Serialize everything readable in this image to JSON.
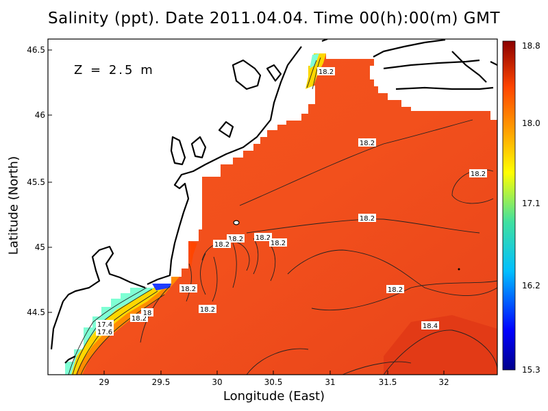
{
  "title": "Salinity (ppt). Date 2011.04.04. Time 00(h):00(m) GMT",
  "depth_label": "Z = 2.5 m",
  "xlabel": "Longitude (East)",
  "ylabel": "Latitude (North)",
  "x_ticks": [
    "29",
    "29.5",
    "30",
    "30.5",
    "31",
    "31.5",
    "32"
  ],
  "y_ticks": [
    "44.5",
    "45",
    "45.5",
    "46",
    "46.5"
  ],
  "colorbar": {
    "ticks": [
      "15.3",
      "16.2",
      "17.1",
      "18.0",
      "18.8"
    ],
    "min": 15.3,
    "max": 18.8,
    "colors": [
      "#00008b",
      "#0000ff",
      "#00bfff",
      "#40e0a0",
      "#ffff00",
      "#ffa500",
      "#ff4500",
      "#8b0000"
    ]
  },
  "contour_labels": [
    "18.2",
    "18.2",
    "18.2",
    "18.2",
    "18.2",
    "18.2",
    "18.2",
    "18.2",
    "18.2",
    "18.2",
    "18.2",
    "18.4",
    "18.2",
    "18",
    "17.6",
    "17.4"
  ],
  "colors": {
    "sea": "#f4521e",
    "coast": "#000000",
    "land": "#ffffff"
  }
}
